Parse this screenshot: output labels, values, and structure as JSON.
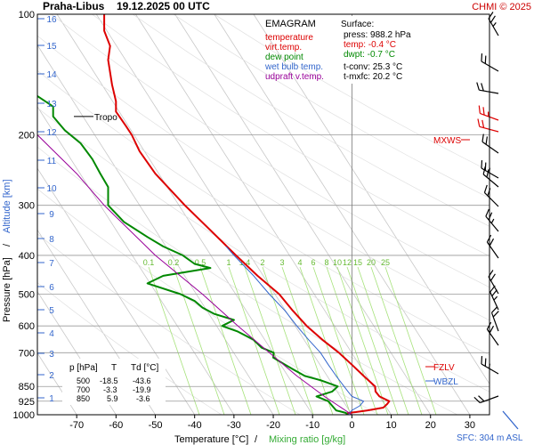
{
  "header": {
    "station": "Praha-Libus",
    "time": "19.12.2025 00 UTC",
    "copyright": "CHMI © 2025"
  },
  "legend": {
    "title": "EMAGRAM",
    "items": [
      {
        "label": "temperature",
        "color": "#dd0000"
      },
      {
        "label": "virt.temp.",
        "color": "#dd0000"
      },
      {
        "label": "dew point",
        "color": "#008800"
      },
      {
        "label": "wet bulb temp.",
        "color": "#3366cc"
      },
      {
        "label": "udpraft v.temp.",
        "color": "#990099"
      }
    ]
  },
  "surface": {
    "title": "Surface:",
    "press": "press: 988.2 hPa",
    "temp": "temp: -0.4 °C",
    "dwpt": "dwpt: -0.7 °C",
    "tconv": "t-conv: 25.3 °C",
    "tmxfc": "t-mxfc: 20.2 °C"
  },
  "levels_table": {
    "headers": [
      "p [hPa]",
      "T",
      "Td [°C]"
    ],
    "rows": [
      [
        "500",
        "-18.5",
        "-43.6"
      ],
      [
        "700",
        "-3.3",
        "-19.9"
      ],
      [
        "850",
        "5.9",
        "-3.6"
      ]
    ]
  },
  "annotations": {
    "tropo": "Tropo",
    "mxws": "MXWS",
    "fzlv": "FZLV",
    "wbzl": "WBZL",
    "sfc": "SFC: 304 m ASL"
  },
  "mixing_ratio_labels": [
    "0.1",
    "0.2",
    "0.5",
    "1",
    "1.4",
    "2",
    "3",
    "4",
    "6",
    "8",
    "10",
    "12",
    "15",
    "20",
    "25"
  ],
  "chart_data": {
    "type": "line",
    "xlabel": "Temperature [°C]",
    "xlabel_sep": " / ",
    "xlabel2": "Mixing ratio [g/kg]",
    "ylabel": "Pressure [hPa]",
    "ylabel_sep": " / ",
    "ylabel2": "Altitude [km]",
    "xlim": [
      -80,
      35
    ],
    "ylim": [
      1000,
      100
    ],
    "y_scale": "log",
    "x_ticks": [
      -70,
      -60,
      -50,
      -40,
      -30,
      -20,
      -10,
      0,
      10,
      20,
      30
    ],
    "y_ticks": [
      100,
      200,
      300,
      400,
      500,
      600,
      700,
      850,
      925,
      1000
    ],
    "altitude_ticks_km": [
      "1",
      "2",
      "3",
      "4",
      "5",
      "6",
      "7",
      "8",
      "9",
      "10",
      "11",
      "12",
      "13",
      "14",
      "15",
      "16"
    ],
    "series": [
      {
        "name": "temperature",
        "color": "#dd0000",
        "points": [
          [
            1000,
            -1
          ],
          [
            990,
            -1
          ],
          [
            985,
            1
          ],
          [
            975,
            4
          ],
          [
            960,
            8
          ],
          [
            940,
            9
          ],
          [
            925,
            9.5
          ],
          [
            900,
            7
          ],
          [
            875,
            6
          ],
          [
            850,
            5.9
          ],
          [
            800,
            3
          ],
          [
            750,
            0
          ],
          [
            700,
            -3.3
          ],
          [
            650,
            -7.5
          ],
          [
            600,
            -11.5
          ],
          [
            550,
            -15
          ],
          [
            500,
            -18.5
          ],
          [
            450,
            -24
          ],
          [
            400,
            -29.5
          ],
          [
            350,
            -35.5
          ],
          [
            300,
            -42.5
          ],
          [
            250,
            -50
          ],
          [
            220,
            -54
          ],
          [
            200,
            -56
          ],
          [
            190,
            -57.5
          ],
          [
            175,
            -60
          ],
          [
            165,
            -60
          ],
          [
            150,
            -61
          ],
          [
            130,
            -62
          ],
          [
            120,
            -61.5
          ],
          [
            110,
            -63
          ],
          [
            100,
            -63
          ]
        ]
      },
      {
        "name": "dew point",
        "color": "#008800",
        "points": [
          [
            1000,
            -1.2
          ],
          [
            990,
            -1.5
          ],
          [
            975,
            -4
          ],
          [
            950,
            -5
          ],
          [
            925,
            -6
          ],
          [
            900,
            -9
          ],
          [
            875,
            -5
          ],
          [
            850,
            -3.6
          ],
          [
            820,
            -8
          ],
          [
            800,
            -12
          ],
          [
            770,
            -15
          ],
          [
            750,
            -17
          ],
          [
            720,
            -20
          ],
          [
            700,
            -19.9
          ],
          [
            680,
            -23
          ],
          [
            650,
            -25
          ],
          [
            620,
            -29
          ],
          [
            600,
            -33
          ],
          [
            580,
            -30
          ],
          [
            560,
            -35
          ],
          [
            540,
            -38
          ],
          [
            520,
            -40
          ],
          [
            500,
            -43.6
          ],
          [
            470,
            -52
          ],
          [
            450,
            -48
          ],
          [
            430,
            -36
          ],
          [
            420,
            -40
          ],
          [
            400,
            -43
          ],
          [
            380,
            -48
          ],
          [
            360,
            -52
          ],
          [
            330,
            -58
          ],
          [
            300,
            -62
          ],
          [
            270,
            -62
          ],
          [
            250,
            -64
          ],
          [
            230,
            -66
          ],
          [
            210,
            -69
          ],
          [
            195,
            -73
          ],
          [
            180,
            -76
          ],
          [
            170,
            -76
          ],
          [
            160,
            -80
          ]
        ]
      },
      {
        "name": "wet bulb temp.",
        "color": "#3366cc",
        "points": [
          [
            1000,
            -1
          ],
          [
            975,
            0
          ],
          [
            950,
            2
          ],
          [
            925,
            3
          ],
          [
            900,
            0
          ],
          [
            875,
            -1
          ],
          [
            850,
            -2
          ],
          [
            800,
            -4
          ],
          [
            750,
            -6
          ],
          [
            700,
            -8
          ],
          [
            650,
            -11
          ],
          [
            600,
            -14
          ],
          [
            550,
            -17
          ],
          [
            500,
            -21
          ],
          [
            450,
            -25
          ],
          [
            400,
            -30
          ],
          [
            380,
            -32
          ]
        ]
      },
      {
        "name": "udpraft v.temp.",
        "color": "#990099",
        "points": [
          [
            1000,
            0
          ],
          [
            900,
            -7
          ],
          [
            800,
            -14
          ],
          [
            700,
            -21
          ],
          [
            600,
            -29
          ],
          [
            500,
            -38
          ],
          [
            400,
            -50
          ],
          [
            300,
            -63
          ],
          [
            250,
            -70
          ],
          [
            200,
            -80
          ]
        ]
      }
    ]
  }
}
